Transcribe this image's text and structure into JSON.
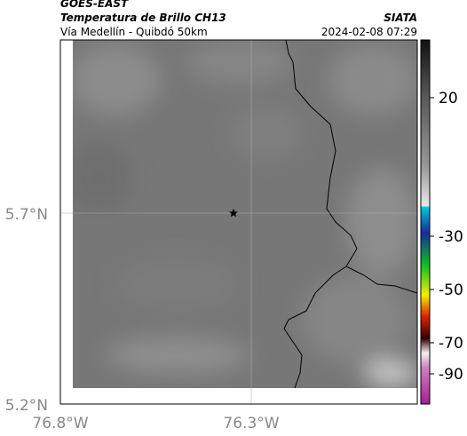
{
  "header": {
    "satellite": "GOES-EAST",
    "product": "Temperatura de Brillo CH13",
    "source": "SIATA",
    "route": "Vía Medellín - Quibdó 50km",
    "datetime": "2024-02-08 07:29"
  },
  "map": {
    "lat_labels": [
      "5.7°N",
      "5.2°N"
    ],
    "lon_labels": [
      "76.8°W",
      "76.3°W"
    ]
  },
  "colorbar": {
    "tick_labels": [
      20,
      -30,
      -50,
      -70,
      -90
    ]
  }
}
